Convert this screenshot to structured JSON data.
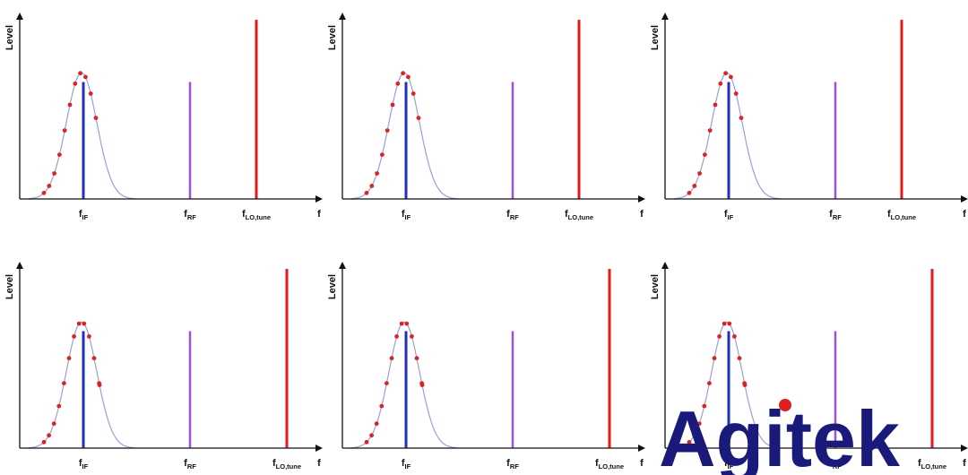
{
  "diagram": {
    "y_axis_label": "Level",
    "x_axis_label": "f",
    "markers": [
      {
        "base": "f",
        "sub": "IF"
      },
      {
        "base": "f",
        "sub": "RF"
      },
      {
        "base": "f",
        "sub": "LO,tune"
      }
    ],
    "colors": {
      "if_line": "#1f2fbf",
      "rf_line": "#9b51e0",
      "lo_line": "#e21a1a",
      "curve": "#9aa0d8",
      "sample_dots": "#dd2222",
      "axis": "#111111"
    }
  },
  "panels": [
    {
      "id": "top-left",
      "sample_count": 11,
      "if_height": 0.64,
      "rf_height": 0.64,
      "lo_height": 0.98,
      "lo_position": 0.74
    },
    {
      "id": "top-middle",
      "sample_count": 11,
      "if_height": 0.64,
      "rf_height": 0.64,
      "lo_height": 0.98,
      "lo_position": 0.74
    },
    {
      "id": "top-right",
      "sample_count": 11,
      "if_height": 0.64,
      "rf_height": 0.64,
      "lo_height": 0.98,
      "lo_position": 0.74
    },
    {
      "id": "bottom-left",
      "sample_count": 13,
      "if_height": 0.64,
      "rf_height": 0.64,
      "lo_height": 0.98,
      "lo_position": 0.84
    },
    {
      "id": "bottom-middle",
      "sample_count": 13,
      "if_height": 0.64,
      "rf_height": 0.64,
      "lo_height": 0.98,
      "lo_position": 0.84
    },
    {
      "id": "bottom-right",
      "sample_count": 13,
      "if_height": 0.64,
      "rf_height": 0.64,
      "lo_height": 0.98,
      "lo_position": 0.84
    }
  ],
  "watermark": {
    "text": "Agitek",
    "text_color": "#1a1a7a",
    "dot_color": "#e02020"
  }
}
